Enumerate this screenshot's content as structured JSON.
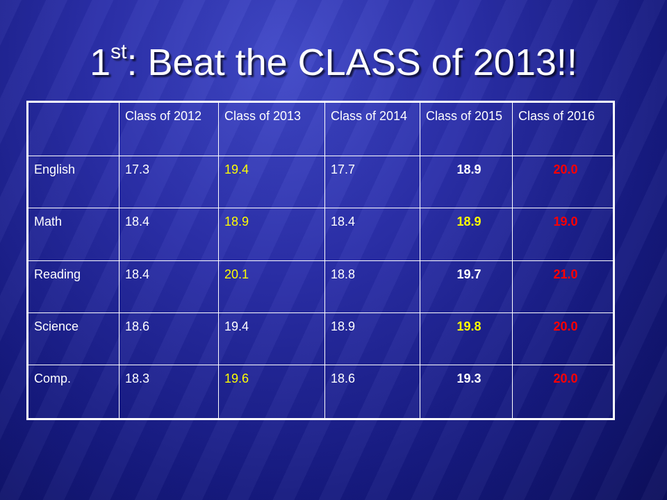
{
  "title": {
    "main_prefix": "1",
    "superscript": "st",
    "main_suffix": ": Beat the CLASS of 2013!!"
  },
  "table": {
    "headers": [
      "",
      "Class of 2012",
      "Class of 2013",
      "Class of 2014",
      "Class of 2015",
      "Class of 2016"
    ],
    "rows": [
      {
        "label": "English",
        "values": [
          "17.3",
          "19.4",
          "17.7",
          "18.9",
          "20.0"
        ]
      },
      {
        "label": "Math",
        "values": [
          "18.4",
          "18.9",
          "18.4",
          "18.9",
          "19.0"
        ]
      },
      {
        "label": "Reading",
        "values": [
          "18.4",
          "20.1",
          "18.8",
          "19.7",
          "21.0"
        ]
      },
      {
        "label": "Science",
        "values": [
          "18.6",
          "19.4",
          "18.9",
          "19.8",
          "20.0"
        ]
      },
      {
        "label": "Comp.",
        "values": [
          "18.3",
          "19.6",
          "18.6",
          "19.3",
          "20.0"
        ]
      }
    ]
  },
  "colors": {
    "background": "#1a1f8a",
    "text": "#ffffff",
    "highlight_2013": "#ffff00",
    "goal_2016": "#ff0000"
  }
}
